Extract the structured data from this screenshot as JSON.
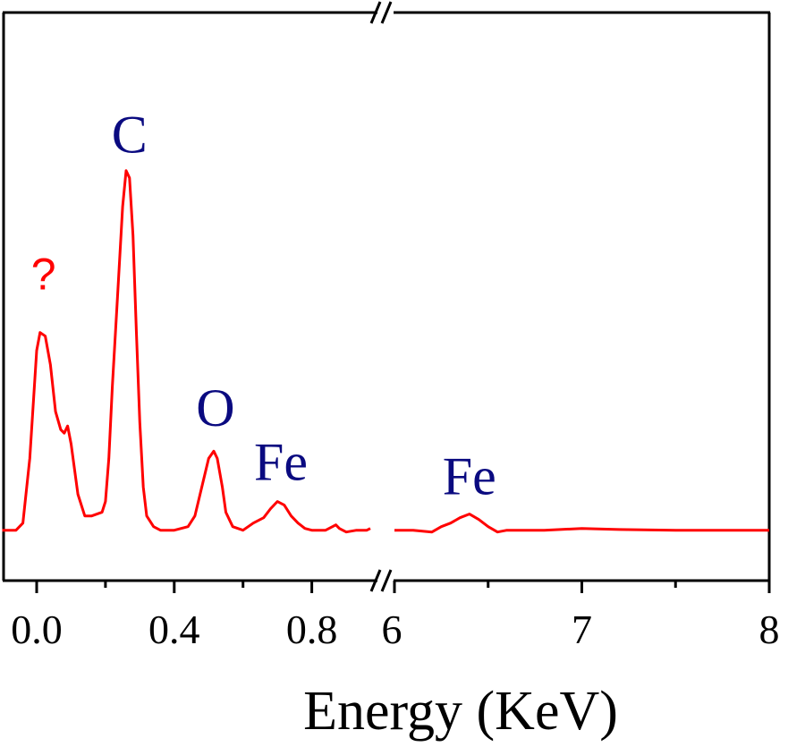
{
  "chart_data": {
    "type": "line",
    "title": "",
    "xlabel": "Energy (KeV)",
    "ylabel": "",
    "axis_break": true,
    "segments": [
      {
        "xlim": [
          -0.1,
          1.0
        ],
        "ticks": [
          0.0,
          0.4,
          0.8
        ],
        "tick_labels": [
          "0.0",
          "0.4",
          "0.8"
        ],
        "minor_ticks": [
          0.2,
          0.6
        ]
      },
      {
        "xlim": [
          6,
          8
        ],
        "ticks": [
          6,
          7,
          8
        ],
        "tick_labels": [
          "6",
          "7",
          "8"
        ],
        "minor_ticks": [
          6.5,
          7.5
        ]
      }
    ],
    "ylim": [
      -0.14,
      1.44
    ],
    "y_ticks_shown": false,
    "grid": false,
    "series": [
      {
        "color": "#ff0000",
        "segments": [
          {
            "x": [
              -0.1,
              -0.06,
              -0.04,
              -0.02,
              0.0,
              0.01,
              0.025,
              0.04,
              0.055,
              0.07,
              0.08,
              0.09,
              0.1,
              0.12,
              0.14,
              0.16,
              0.19,
              0.2,
              0.21,
              0.22,
              0.235,
              0.25,
              0.26,
              0.27,
              0.28,
              0.29,
              0.3,
              0.31,
              0.32,
              0.34,
              0.36,
              0.4,
              0.44,
              0.46,
              0.48,
              0.5,
              0.515,
              0.525,
              0.54,
              0.55,
              0.57,
              0.6,
              0.63,
              0.66,
              0.68,
              0.7,
              0.72,
              0.74,
              0.76,
              0.78,
              0.8,
              0.84,
              0.86,
              0.87,
              0.88,
              0.9,
              0.93,
              0.96,
              0.97
            ],
            "y": [
              0.0,
              0.0,
              0.02,
              0.2,
              0.5,
              0.55,
              0.54,
              0.46,
              0.33,
              0.28,
              0.27,
              0.29,
              0.24,
              0.1,
              0.04,
              0.04,
              0.05,
              0.08,
              0.2,
              0.4,
              0.65,
              0.9,
              1.0,
              0.98,
              0.82,
              0.55,
              0.3,
              0.12,
              0.04,
              0.01,
              0.0,
              0.0,
              0.01,
              0.04,
              0.12,
              0.2,
              0.22,
              0.2,
              0.12,
              0.05,
              0.01,
              0.0,
              0.02,
              0.035,
              0.06,
              0.08,
              0.07,
              0.04,
              0.02,
              0.005,
              0.0,
              0.0,
              0.01,
              0.015,
              0.005,
              -0.005,
              0.0,
              0.0,
              0.005
            ]
          },
          {
            "x": [
              6.0,
              6.1,
              6.2,
              6.25,
              6.3,
              6.35,
              6.4,
              6.45,
              6.5,
              6.55,
              6.6,
              6.8,
              7.0,
              7.2,
              7.5,
              7.8,
              8.0
            ],
            "y": [
              0.0,
              0.0,
              -0.005,
              0.01,
              0.02,
              0.035,
              0.045,
              0.03,
              0.01,
              -0.005,
              0.0,
              0.0,
              0.005,
              0.002,
              0.0,
              0.0,
              0.0
            ]
          }
        ]
      }
    ],
    "annotations": [
      {
        "text": "?",
        "x": 0.02,
        "y": 0.67,
        "color": "#ff0000"
      },
      {
        "text": "C",
        "x": 0.27,
        "y": 1.05,
        "color": "#0a0a80"
      },
      {
        "text": "O",
        "x": 0.52,
        "y": 0.29,
        "color": "#0a0a80"
      },
      {
        "text": "Fe",
        "x": 0.71,
        "y": 0.14,
        "color": "#0a0a80"
      },
      {
        "text": "Fe",
        "x": 6.4,
        "y": 0.1,
        "color": "#0a0a80"
      }
    ]
  }
}
